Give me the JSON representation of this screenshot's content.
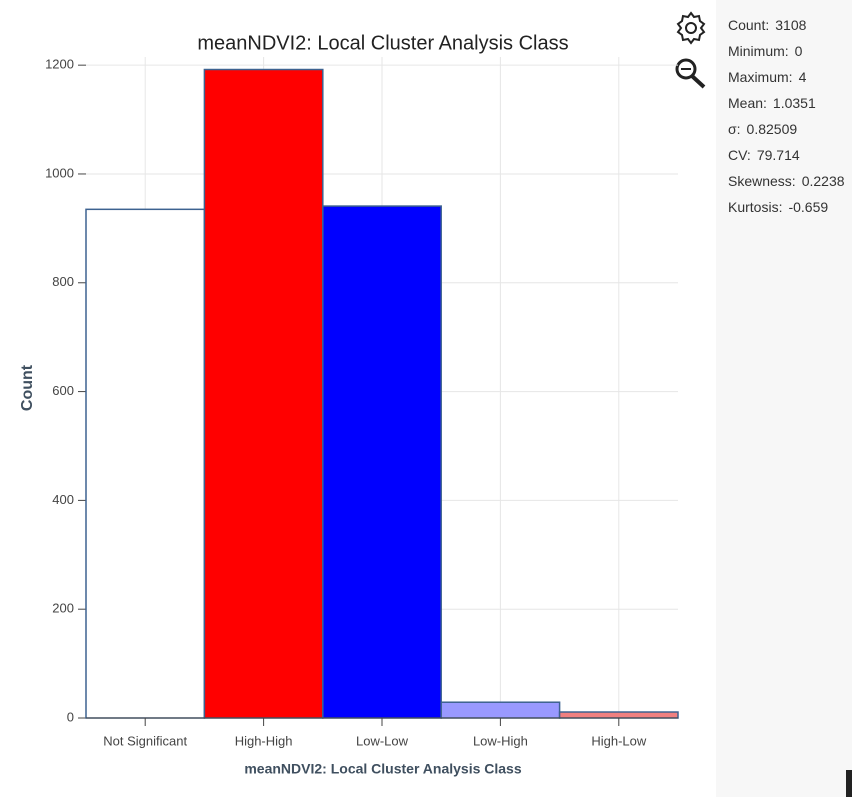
{
  "chart_data": {
    "type": "bar",
    "title": "meanNDVI2: Local Cluster Analysis Class",
    "x_label": "meanNDVI2: Local Cluster Analysis Class",
    "y_label": "Count",
    "categories": [
      "Not Significant",
      "High-High",
      "Low-Low",
      "Low-High",
      "High-Low"
    ],
    "values": [
      935,
      1192,
      941,
      29,
      11
    ],
    "colors": [
      "#ffffff",
      "#ff0000",
      "#0000ff",
      "#9999ff",
      "#f08080"
    ],
    "ylim": [
      0,
      1215
    ],
    "yticks": [
      0,
      200,
      400,
      600,
      800,
      1000,
      1200
    ],
    "grid": true
  },
  "stats": [
    {
      "label": "Count:",
      "value": "3108"
    },
    {
      "label": "Minimum:",
      "value": "0"
    },
    {
      "label": "Maximum:",
      "value": "4"
    },
    {
      "label": "Mean:",
      "value": "1.0351"
    },
    {
      "label": "σ:",
      "value": "0.82509"
    },
    {
      "label": "CV:",
      "value": "79.714"
    },
    {
      "label": "Skewness:",
      "value": "0.2238"
    },
    {
      "label": "Kurtosis:",
      "value": "-0.659"
    }
  ]
}
